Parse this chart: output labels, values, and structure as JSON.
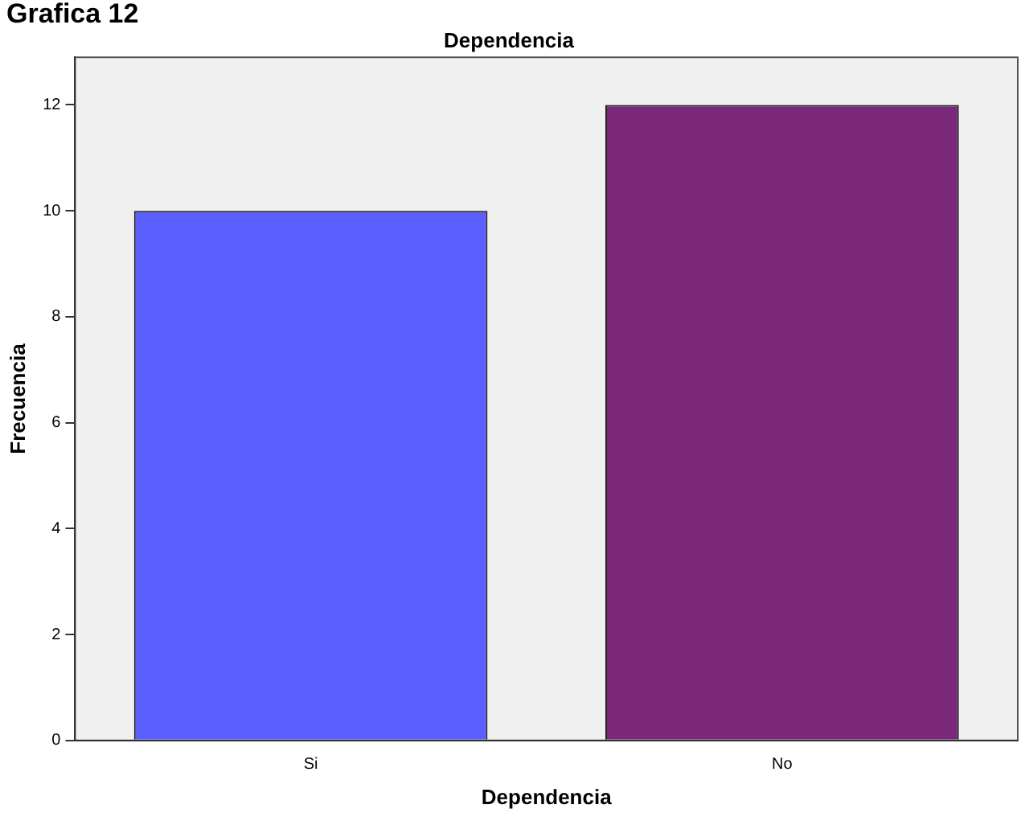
{
  "chart_data": {
    "type": "bar",
    "title": "Dependencia",
    "xlabel": "Dependencia",
    "ylabel": "Frecuencia",
    "annotations": [
      "Grafica 12"
    ],
    "categories": [
      "Si",
      "No"
    ],
    "values": [
      10,
      12
    ],
    "colors": [
      "#5b5ffe",
      "#7b287b"
    ],
    "ylim": [
      0,
      12.9
    ],
    "yticks": [
      0,
      2,
      4,
      6,
      8,
      10,
      12
    ],
    "grid": false,
    "legend": false
  }
}
